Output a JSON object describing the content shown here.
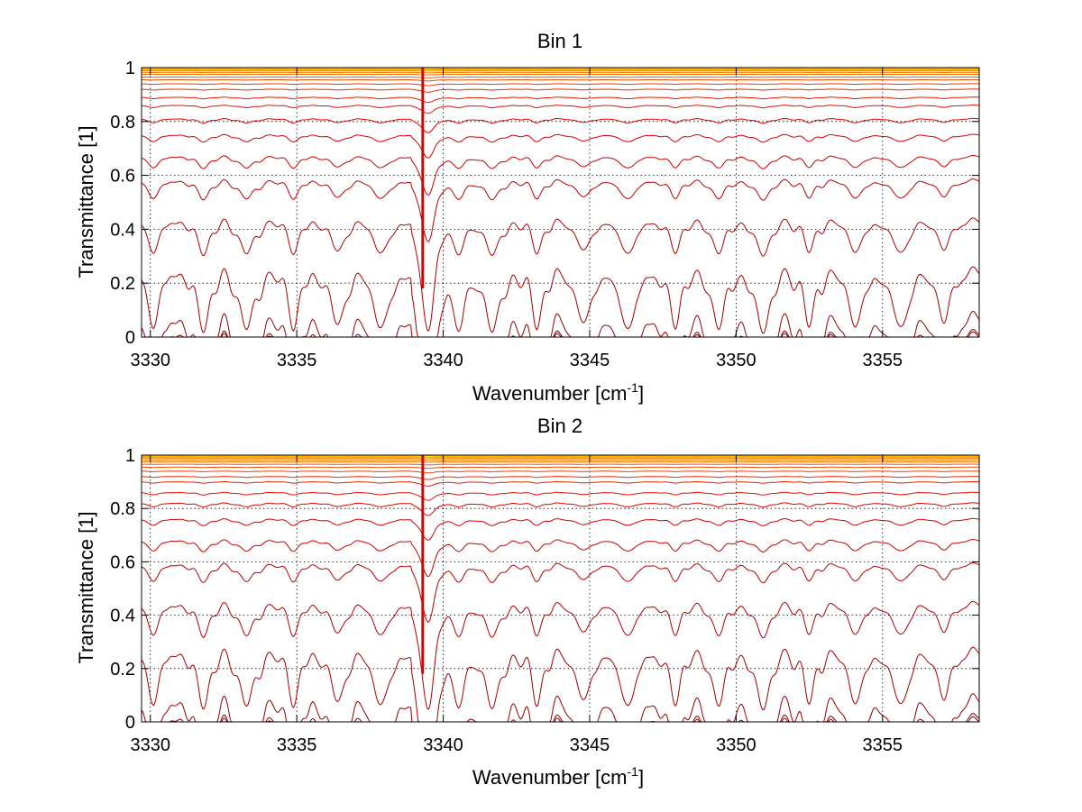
{
  "chart_data": [
    {
      "type": "line",
      "title": "Bin 1",
      "xlabel": "Wavenumber [cm",
      "xlabel_sup": "-1",
      "xlabel_end": "]",
      "ylabel": "Transmittance [1]",
      "xlim": [
        3329.7,
        3358.3
      ],
      "ylim": [
        0,
        1
      ],
      "xticks": [
        "3330",
        "3335",
        "3340",
        "3345",
        "3350",
        "3355"
      ],
      "yticks": [
        "0",
        "0.2",
        "0.4",
        "0.6",
        "0.8",
        "1"
      ],
      "grid": true,
      "band_edge": 3339.3,
      "strong_lines": [
        3330.1,
        3331.8,
        3333.3,
        3334.9,
        3336.4,
        3337.9,
        3339.5,
        3340.5,
        3341.7,
        3343.2,
        3344.8,
        3346.3,
        3347.9,
        3349.4,
        3350.9,
        3352.5,
        3354.1,
        3355.6,
        3357.1
      ],
      "series_baselines": [
        0.003,
        0.012,
        0.07,
        0.24,
        0.43,
        0.58,
        0.67,
        0.75,
        0.81,
        0.86,
        0.89,
        0.92,
        0.94,
        0.955,
        0.965,
        0.975,
        0.982,
        0.988,
        0.992,
        0.995,
        0.997,
        0.998,
        0.999,
        1.0
      ]
    },
    {
      "type": "line",
      "title": "Bin 2",
      "xlabel": "Wavenumber [cm",
      "xlabel_sup": "-1",
      "xlabel_end": "]",
      "ylabel": "Transmittance [1]",
      "xlim": [
        3329.7,
        3358.3
      ],
      "ylim": [
        0,
        1
      ],
      "xticks": [
        "3330",
        "3335",
        "3340",
        "3345",
        "3350",
        "3355"
      ],
      "yticks": [
        "0",
        "0.2",
        "0.4",
        "0.6",
        "0.8",
        "1"
      ],
      "grid": true,
      "band_edge": 3339.3,
      "strong_lines": [
        3330.1,
        3331.8,
        3333.3,
        3334.9,
        3336.4,
        3337.9,
        3339.5,
        3340.5,
        3341.7,
        3343.2,
        3344.8,
        3346.3,
        3347.9,
        3349.4,
        3350.9,
        3352.5,
        3354.1,
        3355.6,
        3357.1
      ],
      "series_baselines": [
        0.003,
        0.015,
        0.08,
        0.26,
        0.44,
        0.59,
        0.68,
        0.76,
        0.82,
        0.86,
        0.9,
        0.92,
        0.94,
        0.955,
        0.966,
        0.975,
        0.982,
        0.988,
        0.992,
        0.995,
        0.997,
        0.998,
        0.999,
        1.0
      ]
    }
  ],
  "colors": {
    "low": "#7a0000",
    "mid": "#e00000",
    "high": "#ffb000",
    "top": "#ffe000"
  }
}
